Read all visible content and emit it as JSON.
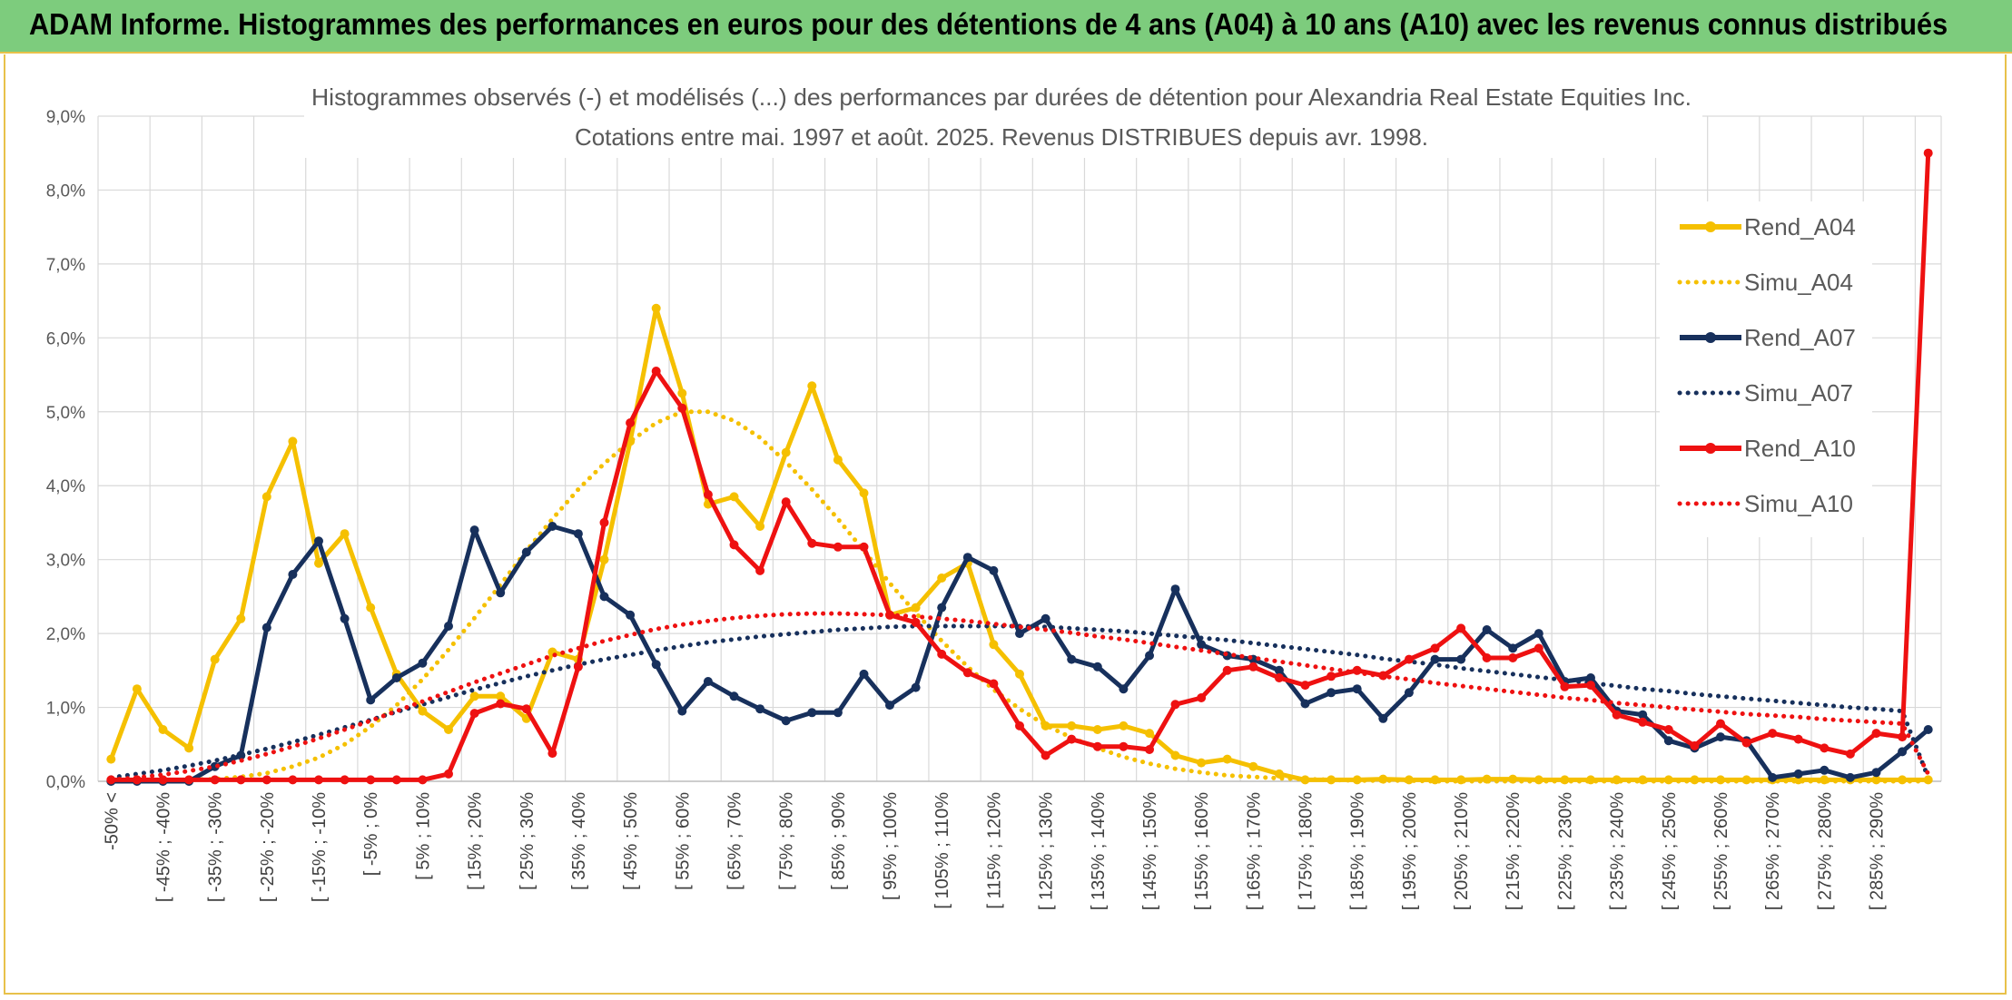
{
  "header": {
    "title": "ADAM Informe. Histogrammes des performances en euros pour des détentions de 4 ans (A04) à 10 ans (A10) avec les revenus connus distribués"
  },
  "chart_data": {
    "type": "line",
    "title_line1": "Histogrammes observés (-) et modélisés (...) des performances par durées de détention pour Alexandria Real Estate Equities Inc.",
    "title_line2": "Cotations entre mai. 1997 et août. 2025. Revenus DISTRIBUES depuis avr. 1998.",
    "ylim": [
      0,
      9
    ],
    "yticks": [
      "0,0%",
      "1,0%",
      "2,0%",
      "3,0%",
      "4,0%",
      "5,0%",
      "6,0%",
      "7,0%",
      "8,0%",
      "9,0%"
    ],
    "grid": true,
    "legend_position": "right",
    "x_tick_labels": [
      "-50% <",
      "[ -45% ; -40%",
      "[ -35% ; -30%",
      "[ -25% ; -20%",
      "[ -15% ; -10%",
      "[ -5% ; 0%",
      "[ 5% ; 10%",
      "[ 15% ; 20%",
      "[ 25% ; 30%",
      "[ 35% ; 40%",
      "[ 45% ; 50%",
      "[ 55% ; 60%",
      "[ 65% ; 70%",
      "[ 75% ; 80%",
      "[ 85% ; 90%",
      "[ 95% ; 100%",
      "[ 105% ; 110%",
      "[ 115% ; 120%",
      "[ 125% ; 130%",
      "[ 135% ; 140%",
      "[ 145% ; 150%",
      "[ 155% ; 160%",
      "[ 165% ; 170%",
      "[ 175% ; 180%",
      "[ 185% ; 190%",
      "[ 195% ; 200%",
      "[ 205% ; 210%",
      "[ 215% ; 220%",
      "[ 225% ; 230%",
      "[ 235% ; 240%",
      "[ 245% ; 250%",
      "[ 255% ; 260%",
      "[ 265% ; 270%",
      "[ 275% ; 280%",
      "[ 285% ; 290%"
    ],
    "category_count": 71,
    "series": [
      {
        "name": "Rend_A04",
        "style": "solid",
        "markers": true,
        "color": "#f5c000",
        "values": [
          0.3,
          1.25,
          0.7,
          0.45,
          1.65,
          2.2,
          3.85,
          4.6,
          2.95,
          3.35,
          2.35,
          1.45,
          0.95,
          0.7,
          1.15,
          1.15,
          0.85,
          1.75,
          1.65,
          3.0,
          4.6,
          6.4,
          5.25,
          3.75,
          3.85,
          3.45,
          4.45,
          5.35,
          4.35,
          3.9,
          2.25,
          2.35,
          2.75,
          2.95,
          1.85,
          1.45,
          0.75,
          0.75,
          0.7,
          0.75,
          0.65,
          0.35,
          0.25,
          0.3,
          0.2,
          0.1,
          0.02,
          0.02,
          0.02,
          0.03,
          0.02,
          0.02,
          0.02,
          0.03,
          0.03,
          0.02,
          0.02,
          0.02,
          0.02,
          0.02,
          0.02,
          0.02,
          0.02,
          0.02,
          0.02,
          0.02,
          0.02,
          0.02,
          0.02,
          0.02,
          0.02
        ]
      },
      {
        "name": "Simu_A04",
        "style": "dotted",
        "markers": false,
        "color": "#f5c000",
        "values": [
          0.0,
          0.0,
          0.01,
          0.02,
          0.03,
          0.06,
          0.11,
          0.2,
          0.32,
          0.5,
          0.74,
          1.03,
          1.38,
          1.78,
          2.21,
          2.66,
          3.12,
          3.55,
          3.95,
          4.3,
          4.6,
          4.85,
          5.0,
          5.0,
          4.88,
          4.65,
          4.32,
          3.95,
          3.55,
          3.12,
          2.68,
          2.28,
          1.9,
          1.55,
          1.24,
          0.98,
          0.76,
          0.59,
          0.45,
          0.33,
          0.24,
          0.17,
          0.12,
          0.08,
          0.06,
          0.04,
          0.03,
          0.02,
          0.01,
          0.01,
          0.01,
          0.0,
          0.0,
          0.0,
          0.0,
          0.0,
          0.0,
          0.0,
          0.0,
          0.0,
          0.0,
          0.0,
          0.0,
          0.0,
          0.0,
          0.0,
          0.0,
          0.0,
          0.0,
          0.0,
          0.0
        ]
      },
      {
        "name": "Rend_A07",
        "style": "solid",
        "markers": true,
        "color": "#17305c",
        "values": [
          0.0,
          0.0,
          0.0,
          0.0,
          0.2,
          0.35,
          2.08,
          2.8,
          3.25,
          2.2,
          1.1,
          1.4,
          1.6,
          2.1,
          3.4,
          2.55,
          3.1,
          3.45,
          3.35,
          2.5,
          2.25,
          1.58,
          0.95,
          1.35,
          1.15,
          0.98,
          0.82,
          0.93,
          0.93,
          1.45,
          1.03,
          1.27,
          2.35,
          3.03,
          2.85,
          2.0,
          2.2,
          1.65,
          1.55,
          1.25,
          1.7,
          2.6,
          1.85,
          1.7,
          1.65,
          1.5,
          1.05,
          1.2,
          1.25,
          0.85,
          1.2,
          1.65,
          1.65,
          2.05,
          1.8,
          2.0,
          1.35,
          1.4,
          0.95,
          0.9,
          0.55,
          0.45,
          0.6,
          0.55,
          0.05,
          0.1,
          0.15,
          0.05,
          0.12,
          0.4,
          0.7
        ]
      },
      {
        "name": "Simu_A07",
        "style": "dotted",
        "markers": false,
        "color": "#17305c",
        "values": [
          0.05,
          0.1,
          0.15,
          0.21,
          0.28,
          0.36,
          0.44,
          0.53,
          0.63,
          0.73,
          0.83,
          0.94,
          1.04,
          1.14,
          1.24,
          1.33,
          1.42,
          1.5,
          1.58,
          1.65,
          1.71,
          1.77,
          1.83,
          1.88,
          1.92,
          1.96,
          1.99,
          2.02,
          2.05,
          2.07,
          2.09,
          2.1,
          2.1,
          2.1,
          2.1,
          2.1,
          2.09,
          2.07,
          2.05,
          2.03,
          2.0,
          1.97,
          1.94,
          1.91,
          1.87,
          1.83,
          1.79,
          1.75,
          1.71,
          1.66,
          1.62,
          1.58,
          1.53,
          1.49,
          1.45,
          1.41,
          1.37,
          1.33,
          1.29,
          1.25,
          1.22,
          1.18,
          1.15,
          1.12,
          1.09,
          1.06,
          1.03,
          1.0,
          0.98,
          0.95,
          0.05
        ]
      },
      {
        "name": "Rend_A10",
        "style": "solid",
        "markers": true,
        "color": "#ee1111",
        "values": [
          0.02,
          0.02,
          0.02,
          0.02,
          0.02,
          0.02,
          0.02,
          0.02,
          0.02,
          0.02,
          0.02,
          0.02,
          0.02,
          0.1,
          0.92,
          1.05,
          0.98,
          0.38,
          1.55,
          3.5,
          4.85,
          5.55,
          5.05,
          3.88,
          3.2,
          2.85,
          3.78,
          3.22,
          3.17,
          3.17,
          2.25,
          2.15,
          1.72,
          1.47,
          1.32,
          0.75,
          0.35,
          0.57,
          0.47,
          0.47,
          0.43,
          1.04,
          1.13,
          1.5,
          1.55,
          1.4,
          1.3,
          1.42,
          1.5,
          1.43,
          1.65,
          1.8,
          2.07,
          1.67,
          1.67,
          1.8,
          1.28,
          1.3,
          0.9,
          0.8,
          0.7,
          0.48,
          0.78,
          0.52,
          0.65,
          0.57,
          0.45,
          0.37,
          0.65,
          0.6,
          8.5
        ]
      },
      {
        "name": "Simu_A10",
        "style": "dotted",
        "markers": false,
        "color": "#ee1111",
        "values": [
          0.02,
          0.05,
          0.09,
          0.14,
          0.2,
          0.28,
          0.37,
          0.47,
          0.58,
          0.7,
          0.82,
          0.95,
          1.08,
          1.21,
          1.34,
          1.46,
          1.58,
          1.7,
          1.8,
          1.9,
          1.98,
          2.06,
          2.12,
          2.17,
          2.21,
          2.24,
          2.26,
          2.27,
          2.27,
          2.26,
          2.25,
          2.23,
          2.2,
          2.17,
          2.13,
          2.09,
          2.05,
          2.01,
          1.96,
          1.92,
          1.87,
          1.82,
          1.77,
          1.72,
          1.67,
          1.62,
          1.57,
          1.52,
          1.47,
          1.42,
          1.38,
          1.33,
          1.29,
          1.25,
          1.21,
          1.17,
          1.13,
          1.1,
          1.06,
          1.03,
          1.0,
          0.97,
          0.94,
          0.91,
          0.89,
          0.87,
          0.84,
          0.82,
          0.8,
          0.78,
          0.1
        ]
      }
    ]
  }
}
